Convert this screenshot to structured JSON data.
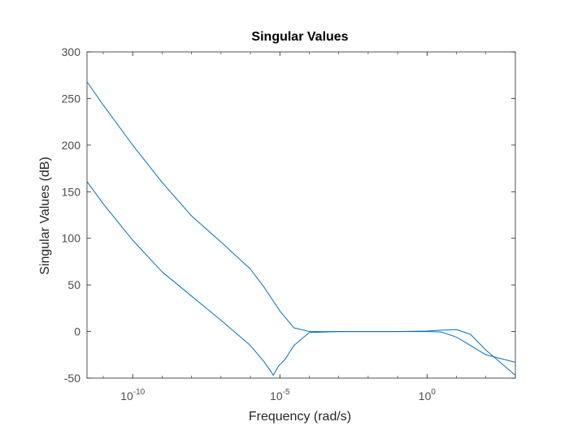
{
  "chart_data": {
    "type": "line",
    "title": "Singular Values",
    "xlabel": "Frequency (rad/s)",
    "ylabel": "Singular Values (dB)",
    "x_scale": "log",
    "xlim": [
      2.8e-12,
      1000.0
    ],
    "ylim": [
      -50,
      300
    ],
    "x_ticks": [
      {
        "value": 1e-10,
        "base": "10",
        "exp": "-10"
      },
      {
        "value": 1e-05,
        "base": "10",
        "exp": "-5"
      },
      {
        "value": 1,
        "base": "10",
        "exp": "0"
      }
    ],
    "y_ticks": [
      -50,
      0,
      50,
      100,
      150,
      200,
      250,
      300
    ],
    "grid": false,
    "colors": {
      "line": "#0072bd",
      "axis": "#262626",
      "tick_text": "#4d4d4d"
    },
    "series": [
      {
        "x": [
          2.8e-12,
          1e-11,
          1e-10,
          1e-09,
          1e-08,
          1e-07,
          1e-06,
          3e-06,
          1e-05,
          3e-05,
          0.0001,
          0.001,
          0.01,
          0.1,
          1,
          3,
          10,
          30,
          100,
          1000
        ],
        "y": [
          268,
          243,
          200,
          160,
          124,
          96,
          67,
          47,
          22,
          4,
          0,
          0,
          0,
          0,
          0,
          -0.5,
          -6,
          -15,
          -25,
          -33
        ]
      },
      {
        "x": [
          2.8e-12,
          1e-11,
          1e-10,
          1e-09,
          1e-08,
          1e-07,
          1e-06,
          3e-06,
          5e-06,
          6e-06,
          7e-06,
          9e-06,
          1.5e-05,
          3e-05,
          0.0001,
          0.001,
          0.01,
          0.1,
          1,
          3,
          10,
          30,
          100,
          1000
        ],
        "y": [
          161,
          137,
          98,
          64,
          38,
          12,
          -15,
          -33,
          -43,
          -47,
          -43,
          -37,
          -30,
          -15,
          -1,
          0,
          0,
          0,
          0.5,
          1.5,
          2,
          -3,
          -20,
          -47
        ]
      }
    ]
  }
}
